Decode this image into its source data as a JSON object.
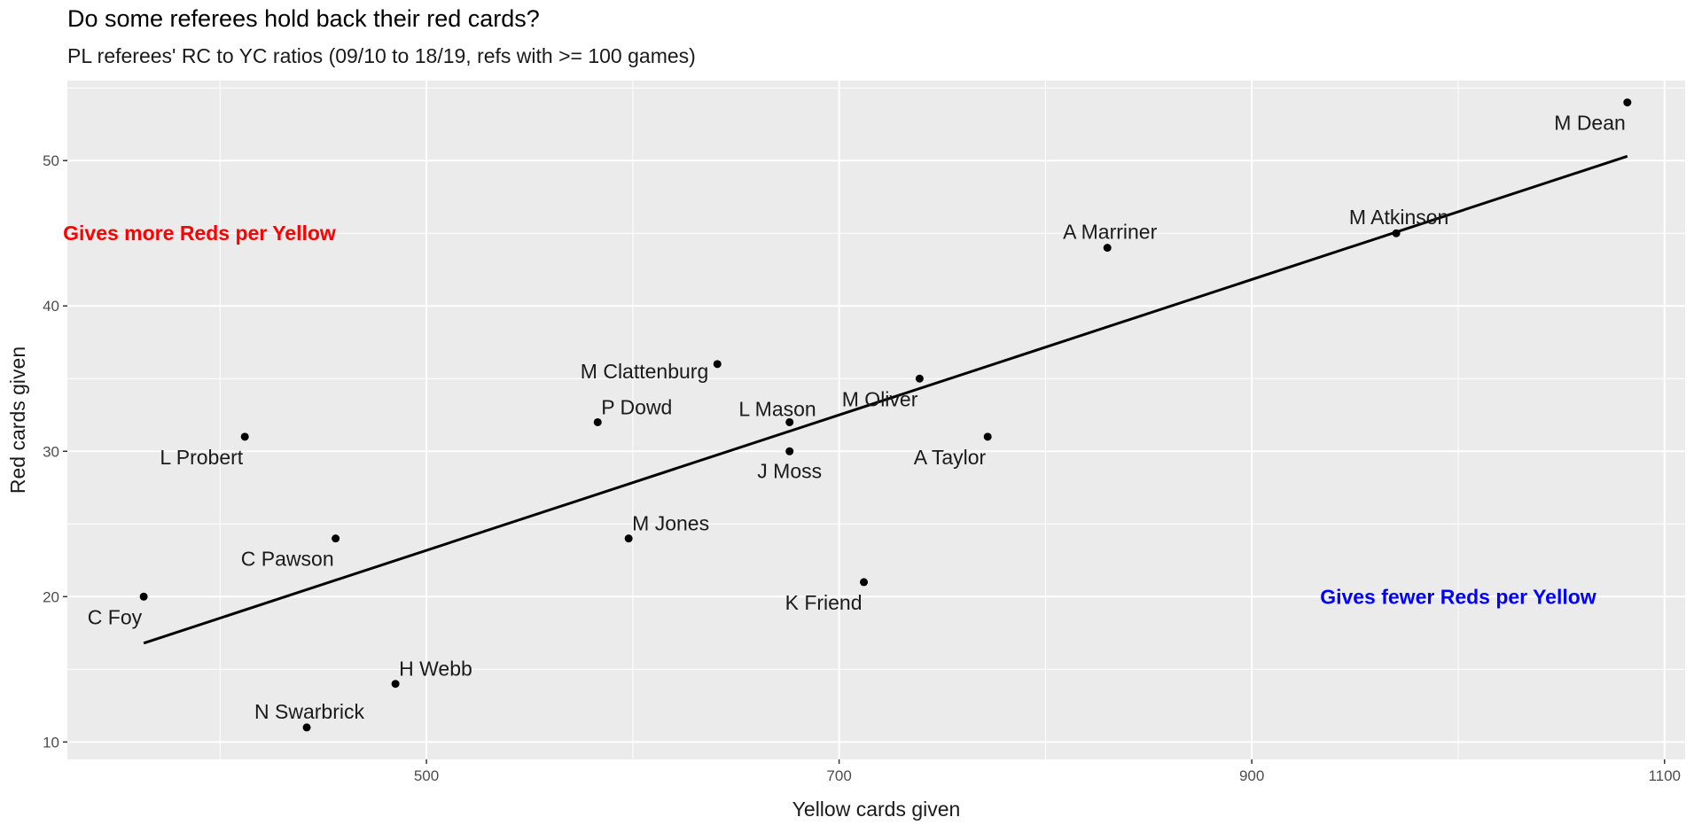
{
  "chart_data": {
    "type": "scatter",
    "title": "Do some referees hold back their red cards?",
    "subtitle": "PL referees' RC to YC ratios (09/10 to 18/19, refs with >= 100 games)",
    "xlabel": "Yellow cards given",
    "ylabel": "Red cards given",
    "xlim": [
      326,
      1110
    ],
    "ylim": [
      8.8,
      55.5
    ],
    "xticks": [
      500,
      700,
      900,
      1100
    ],
    "yticks": [
      10,
      20,
      30,
      40,
      50
    ],
    "points": [
      {
        "name": "M Dean",
        "x": 1082,
        "y": 54,
        "label_pos": "below-left"
      },
      {
        "name": "M Atkinson",
        "x": 970,
        "y": 45,
        "label_pos": "above"
      },
      {
        "name": "A Marriner",
        "x": 830,
        "y": 44,
        "label_pos": "above"
      },
      {
        "name": "M Clattenburg",
        "x": 641,
        "y": 36,
        "label_pos": "left"
      },
      {
        "name": "M Oliver",
        "x": 739,
        "y": 35,
        "label_pos": "below-left"
      },
      {
        "name": "P Dowd",
        "x": 583,
        "y": 32,
        "label_pos": "above-right"
      },
      {
        "name": "L Mason",
        "x": 676,
        "y": 32,
        "label_pos": "above-left"
      },
      {
        "name": "L Probert",
        "x": 412,
        "y": 31,
        "label_pos": "below-left"
      },
      {
        "name": "A Taylor",
        "x": 772,
        "y": 31,
        "label_pos": "below-left"
      },
      {
        "name": "J Moss",
        "x": 676,
        "y": 30,
        "label_pos": "below"
      },
      {
        "name": "M Jones",
        "x": 598,
        "y": 24,
        "label_pos": "above-right"
      },
      {
        "name": "C Pawson",
        "x": 456,
        "y": 24,
        "label_pos": "below-left"
      },
      {
        "name": "K Friend",
        "x": 712,
        "y": 21,
        "label_pos": "below-left"
      },
      {
        "name": "C Foy",
        "x": 363,
        "y": 20,
        "label_pos": "below-left"
      },
      {
        "name": "H Webb",
        "x": 485,
        "y": 14,
        "label_pos": "above-right"
      },
      {
        "name": "N Swarbrick",
        "x": 442,
        "y": 11,
        "label_pos": "above"
      }
    ],
    "trend_line": {
      "x": [
        363,
        1082
      ],
      "y": [
        16.8,
        50.3
      ]
    },
    "annotations": [
      {
        "text": "Gives more Reds per Yellow",
        "x": 390,
        "y": 45,
        "color": "#ff0000"
      },
      {
        "text": "Gives fewer Reds per Yellow",
        "x": 1000,
        "y": 20,
        "color": "#0000ff"
      }
    ],
    "colors": {
      "panel": "#ebebeb",
      "grid_major": "#ffffff",
      "points": "#000000",
      "line": "#000000"
    }
  }
}
